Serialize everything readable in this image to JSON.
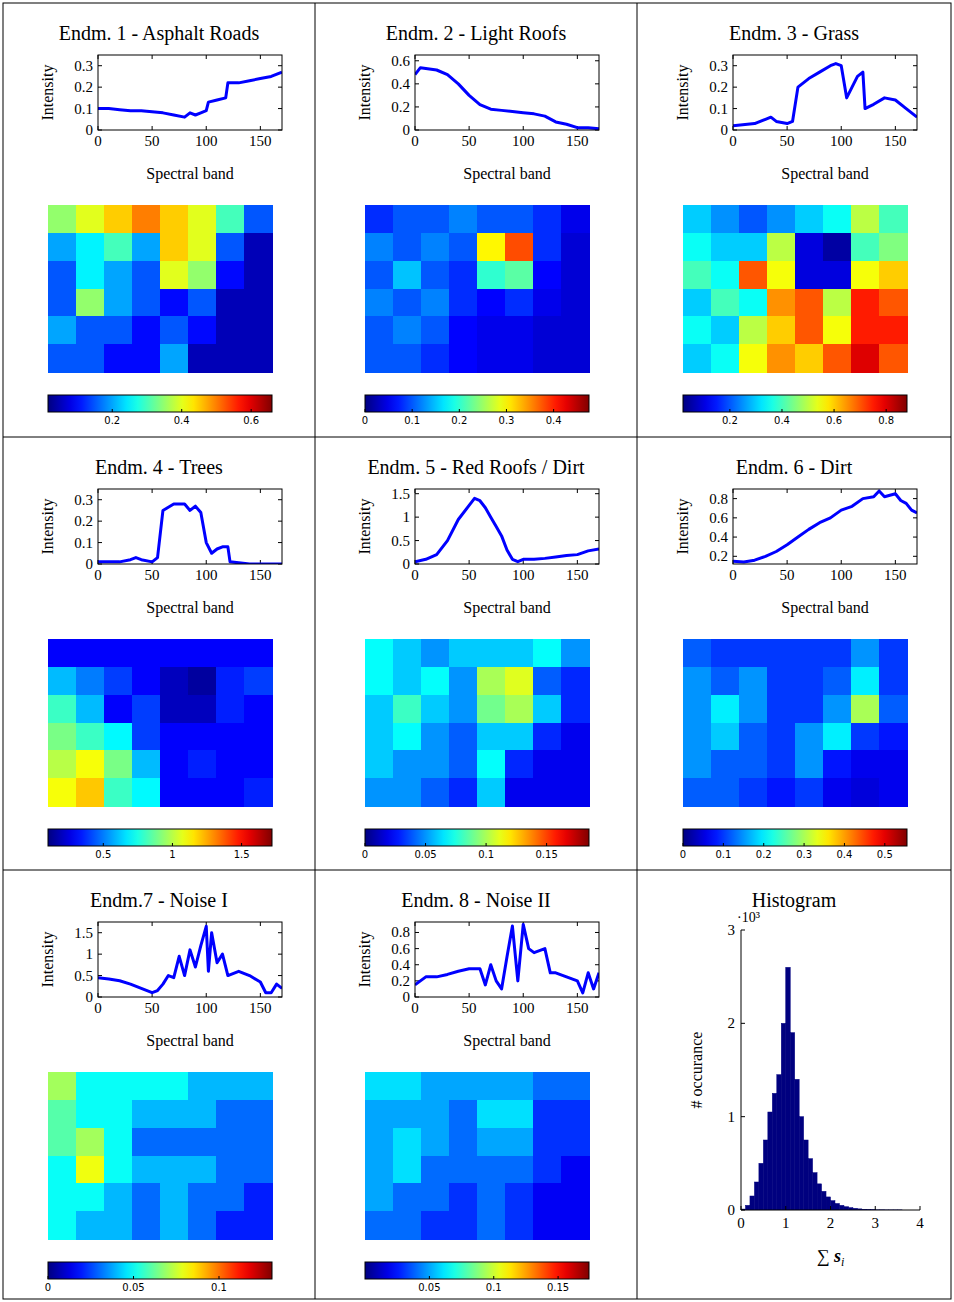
{
  "chart_data": [
    {
      "type": "line",
      "title": "Endm. 1 - Asphalt Roads",
      "color": "#0000ff",
      "x_label": "Spectral band",
      "y_label": "Intensity",
      "x": [
        0,
        10,
        20,
        30,
        40,
        50,
        60,
        70,
        80,
        85,
        90,
        95,
        100,
        102,
        110,
        118,
        120,
        130,
        140,
        150,
        160,
        170
      ],
      "values": [
        0.1,
        0.1,
        0.095,
        0.09,
        0.09,
        0.085,
        0.08,
        0.07,
        0.06,
        0.08,
        0.07,
        0.08,
        0.09,
        0.13,
        0.14,
        0.15,
        0.22,
        0.22,
        0.23,
        0.24,
        0.25,
        0.27
      ],
      "xlim": [
        0,
        170
      ],
      "ylim": [
        0,
        0.35
      ],
      "xticks": [
        0,
        50,
        100,
        150
      ],
      "yticks": [
        0,
        0.1,
        0.2,
        0.3
      ],
      "heatmap": {
        "cells": [
          [
            0.35,
            0.4,
            0.45,
            0.5,
            0.45,
            0.4,
            0.3,
            0.15
          ],
          [
            0.2,
            0.25,
            0.3,
            0.2,
            0.45,
            0.4,
            0.15,
            0.05
          ],
          [
            0.15,
            0.25,
            0.2,
            0.15,
            0.4,
            0.35,
            0.1,
            0.05
          ],
          [
            0.15,
            0.35,
            0.2,
            0.15,
            0.1,
            0.15,
            0.05,
            0.05
          ],
          [
            0.2,
            0.15,
            0.15,
            0.1,
            0.15,
            0.1,
            0.05,
            0.05
          ],
          [
            0.15,
            0.15,
            0.1,
            0.1,
            0.2,
            0.05,
            0.05,
            0.05
          ]
        ],
        "range": [
          0.015,
          0.66
        ],
        "ticks": [
          0.2,
          0.4,
          0.6
        ]
      }
    },
    {
      "type": "line",
      "title": "Endm. 2 - Light Roofs",
      "color": "#0000ff",
      "x_label": "Spectral band",
      "y_label": "Intensity",
      "x": [
        0,
        5,
        20,
        30,
        40,
        50,
        60,
        70,
        80,
        90,
        100,
        110,
        120,
        130,
        140,
        150,
        160,
        170
      ],
      "values": [
        0.48,
        0.54,
        0.52,
        0.48,
        0.4,
        0.3,
        0.22,
        0.18,
        0.17,
        0.16,
        0.15,
        0.14,
        0.12,
        0.07,
        0.05,
        0.02,
        0.02,
        0.01
      ],
      "xlim": [
        0,
        170
      ],
      "ylim": [
        0,
        0.65
      ],
      "xticks": [
        0,
        50,
        100,
        150
      ],
      "yticks": [
        0,
        0.2,
        0.4,
        0.6
      ],
      "heatmap": {
        "cells": [
          [
            0.08,
            0.1,
            0.1,
            0.12,
            0.1,
            0.1,
            0.08,
            0.05
          ],
          [
            0.12,
            0.1,
            0.12,
            0.1,
            0.3,
            0.38,
            0.08,
            0.04
          ],
          [
            0.1,
            0.15,
            0.1,
            0.08,
            0.2,
            0.22,
            0.06,
            0.04
          ],
          [
            0.12,
            0.1,
            0.12,
            0.08,
            0.06,
            0.08,
            0.05,
            0.04
          ],
          [
            0.1,
            0.12,
            0.1,
            0.06,
            0.05,
            0.05,
            0.04,
            0.04
          ],
          [
            0.1,
            0.1,
            0.08,
            0.06,
            0.05,
            0.05,
            0.04,
            0.04
          ]
        ],
        "range": [
          0,
          0.475
        ],
        "ticks": [
          0,
          0.1,
          0.2,
          0.3,
          0.4
        ]
      }
    },
    {
      "type": "line",
      "title": "Endm. 3 - Grass",
      "color": "#0000ff",
      "x_label": "Spectral band",
      "y_label": "Intensity",
      "x": [
        0,
        20,
        30,
        35,
        40,
        50,
        55,
        60,
        70,
        80,
        90,
        95,
        100,
        102,
        105,
        110,
        115,
        120,
        122,
        130,
        140,
        150,
        160,
        170
      ],
      "values": [
        0.02,
        0.03,
        0.05,
        0.06,
        0.04,
        0.03,
        0.04,
        0.2,
        0.24,
        0.27,
        0.3,
        0.31,
        0.3,
        0.24,
        0.15,
        0.2,
        0.25,
        0.27,
        0.1,
        0.12,
        0.15,
        0.14,
        0.1,
        0.06
      ],
      "xlim": [
        0,
        170
      ],
      "ylim": [
        0,
        0.35
      ],
      "xticks": [
        0,
        50,
        100,
        150
      ],
      "yticks": [
        0,
        0.1,
        0.2,
        0.3
      ],
      "heatmap": {
        "cells": [
          [
            0.3,
            0.25,
            0.2,
            0.25,
            0.3,
            0.35,
            0.5,
            0.4
          ],
          [
            0.35,
            0.3,
            0.3,
            0.5,
            0.1,
            0.05,
            0.4,
            0.45
          ],
          [
            0.4,
            0.35,
            0.7,
            0.55,
            0.1,
            0.1,
            0.55,
            0.6
          ],
          [
            0.3,
            0.4,
            0.35,
            0.65,
            0.7,
            0.5,
            0.75,
            0.7
          ],
          [
            0.35,
            0.3,
            0.5,
            0.6,
            0.7,
            0.55,
            0.75,
            0.75
          ],
          [
            0.3,
            0.35,
            0.55,
            0.65,
            0.6,
            0.7,
            0.8,
            0.7
          ]
        ],
        "range": [
          0.02,
          0.88
        ],
        "ticks": [
          0.2,
          0.4,
          0.6,
          0.8
        ]
      }
    },
    {
      "type": "line",
      "title": "Endm. 4 - Trees",
      "color": "#0000ff",
      "x_label": "Spectral band",
      "y_label": "Intensity",
      "x": [
        0,
        20,
        30,
        35,
        40,
        50,
        55,
        60,
        70,
        80,
        85,
        90,
        95,
        100,
        105,
        110,
        115,
        120,
        122,
        140,
        170
      ],
      "values": [
        0.01,
        0.01,
        0.02,
        0.03,
        0.02,
        0.01,
        0.03,
        0.25,
        0.28,
        0.28,
        0.25,
        0.27,
        0.24,
        0.1,
        0.05,
        0.07,
        0.08,
        0.08,
        0.01,
        0,
        0
      ],
      "xlim": [
        0,
        170
      ],
      "ylim": [
        0,
        0.35
      ],
      "xticks": [
        0,
        50,
        100,
        150
      ],
      "yticks": [
        0,
        0.1,
        0.2,
        0.3
      ],
      "heatmap": {
        "cells": [
          [
            0.3,
            0.3,
            0.3,
            0.3,
            0.3,
            0.3,
            0.3,
            0.3
          ],
          [
            0.6,
            0.5,
            0.4,
            0.3,
            0.2,
            0.15,
            0.35,
            0.4
          ],
          [
            0.8,
            0.6,
            0.3,
            0.4,
            0.2,
            0.2,
            0.35,
            0.3
          ],
          [
            0.9,
            0.8,
            0.7,
            0.4,
            0.3,
            0.3,
            0.3,
            0.3
          ],
          [
            1.0,
            1.1,
            0.9,
            0.6,
            0.3,
            0.35,
            0.3,
            0.3
          ],
          [
            1.1,
            1.2,
            0.8,
            0.7,
            0.3,
            0.3,
            0.3,
            0.35
          ]
        ],
        "range": [
          0.1,
          1.72
        ],
        "ticks": [
          0.5,
          1,
          1.5
        ]
      }
    },
    {
      "type": "line",
      "title": "Endm. 5 - Red Roofs / Dirt",
      "color": "#0000ff",
      "x_label": "Spectral band",
      "y_label": "Intensity",
      "x": [
        0,
        10,
        20,
        30,
        40,
        50,
        55,
        60,
        65,
        70,
        75,
        80,
        85,
        90,
        95,
        100,
        110,
        120,
        130,
        140,
        150,
        160,
        170
      ],
      "values": [
        0.05,
        0.1,
        0.2,
        0.5,
        0.95,
        1.25,
        1.4,
        1.35,
        1.2,
        1.0,
        0.8,
        0.6,
        0.3,
        0.1,
        0.05,
        0.1,
        0.1,
        0.12,
        0.15,
        0.18,
        0.2,
        0.28,
        0.32
      ],
      "xlim": [
        0,
        170
      ],
      "ylim": [
        0,
        1.6
      ],
      "xticks": [
        0,
        50,
        100,
        150
      ],
      "yticks": [
        0,
        0.5,
        1,
        1.5
      ],
      "heatmap": {
        "cells": [
          [
            0.07,
            0.06,
            0.05,
            0.06,
            0.06,
            0.06,
            0.07,
            0.05
          ],
          [
            0.07,
            0.06,
            0.07,
            0.05,
            0.1,
            0.11,
            0.04,
            0.03
          ],
          [
            0.06,
            0.08,
            0.06,
            0.05,
            0.09,
            0.1,
            0.06,
            0.03
          ],
          [
            0.06,
            0.07,
            0.05,
            0.04,
            0.06,
            0.06,
            0.03,
            0.02
          ],
          [
            0.06,
            0.05,
            0.05,
            0.04,
            0.07,
            0.03,
            0.02,
            0.02
          ],
          [
            0.05,
            0.05,
            0.04,
            0.03,
            0.06,
            0.02,
            0.02,
            0.02
          ]
        ],
        "range": [
          0,
          0.185
        ],
        "ticks": [
          0,
          0.05,
          0.1,
          0.15
        ]
      }
    },
    {
      "type": "line",
      "title": "Endm. 6 - Dirt",
      "color": "#0000ff",
      "x_label": "Spectral band",
      "y_label": "Intensity",
      "x": [
        0,
        10,
        20,
        30,
        40,
        50,
        60,
        70,
        80,
        90,
        100,
        110,
        120,
        130,
        135,
        140,
        150,
        155,
        160,
        165,
        170
      ],
      "values": [
        0.15,
        0.14,
        0.16,
        0.2,
        0.25,
        0.32,
        0.4,
        0.48,
        0.55,
        0.6,
        0.68,
        0.72,
        0.8,
        0.82,
        0.88,
        0.82,
        0.85,
        0.78,
        0.75,
        0.68,
        0.65
      ],
      "xlim": [
        0,
        170
      ],
      "ylim": [
        0.12,
        0.9
      ],
      "xticks": [
        0,
        50,
        100,
        150
      ],
      "yticks": [
        0.2,
        0.4,
        0.6,
        0.8
      ],
      "heatmap": {
        "cells": [
          [
            0.12,
            0.1,
            0.1,
            0.1,
            0.1,
            0.1,
            0.15,
            0.1
          ],
          [
            0.15,
            0.12,
            0.15,
            0.1,
            0.1,
            0.12,
            0.2,
            0.1
          ],
          [
            0.15,
            0.2,
            0.15,
            0.1,
            0.1,
            0.15,
            0.3,
            0.12
          ],
          [
            0.15,
            0.18,
            0.12,
            0.1,
            0.15,
            0.2,
            0.1,
            0.08
          ],
          [
            0.15,
            0.12,
            0.12,
            0.1,
            0.15,
            0.08,
            0.06,
            0.06
          ],
          [
            0.12,
            0.12,
            0.1,
            0.08,
            0.1,
            0.06,
            0.05,
            0.06
          ]
        ],
        "range": [
          0,
          0.555
        ],
        "ticks": [
          0,
          0.1,
          0.2,
          0.3,
          0.4,
          0.5
        ]
      }
    },
    {
      "type": "line",
      "title": "Endm.7 - Noise I",
      "color": "#0000ff",
      "x_label": "Spectral band",
      "y_label": "Intensity",
      "x": [
        0,
        10,
        20,
        30,
        40,
        50,
        55,
        60,
        65,
        70,
        75,
        80,
        85,
        90,
        95,
        100,
        102,
        105,
        110,
        115,
        120,
        130,
        140,
        150,
        155,
        160,
        165,
        170
      ],
      "values": [
        0.45,
        0.42,
        0.38,
        0.3,
        0.2,
        0.1,
        0.15,
        0.3,
        0.5,
        0.45,
        0.95,
        0.5,
        1.1,
        0.7,
        1.2,
        1.65,
        0.6,
        1.5,
        0.8,
        1.0,
        0.5,
        0.6,
        0.5,
        0.35,
        0.1,
        0.1,
        0.3,
        0.2
      ],
      "xlim": [
        0,
        170
      ],
      "ylim": [
        0,
        1.75
      ],
      "xticks": [
        0,
        50,
        100,
        150
      ],
      "yticks": [
        0,
        0.5,
        1,
        1.5
      ],
      "heatmap": {
        "cells": [
          [
            0.07,
            0.05,
            0.05,
            0.05,
            0.05,
            0.04,
            0.04,
            0.04
          ],
          [
            0.06,
            0.05,
            0.05,
            0.04,
            0.04,
            0.04,
            0.03,
            0.03
          ],
          [
            0.06,
            0.07,
            0.05,
            0.03,
            0.03,
            0.03,
            0.03,
            0.03
          ],
          [
            0.05,
            0.08,
            0.05,
            0.04,
            0.04,
            0.04,
            0.03,
            0.03
          ],
          [
            0.05,
            0.05,
            0.04,
            0.03,
            0.04,
            0.03,
            0.03,
            0.02
          ],
          [
            0.05,
            0.04,
            0.04,
            0.03,
            0.04,
            0.03,
            0.02,
            0.02
          ]
        ],
        "range": [
          0,
          0.131
        ],
        "ticks": [
          0,
          0.05,
          0.1
        ]
      }
    },
    {
      "type": "line",
      "title": "Endm. 8 - Noise II",
      "color": "#0000ff",
      "x_label": "Spectral band",
      "y_label": "Intensity",
      "x": [
        0,
        10,
        20,
        30,
        40,
        50,
        60,
        65,
        70,
        75,
        80,
        85,
        90,
        95,
        100,
        105,
        110,
        120,
        125,
        130,
        140,
        150,
        155,
        160,
        165,
        170
      ],
      "values": [
        0.15,
        0.25,
        0.25,
        0.28,
        0.32,
        0.35,
        0.35,
        0.15,
        0.4,
        0.2,
        0.1,
        0.5,
        0.88,
        0.2,
        0.9,
        0.6,
        0.55,
        0.6,
        0.3,
        0.3,
        0.25,
        0.2,
        0.05,
        0.3,
        0.1,
        0.3
      ],
      "xlim": [
        0,
        170
      ],
      "ylim": [
        0,
        0.93
      ],
      "xticks": [
        0,
        50,
        100,
        150
      ],
      "yticks": [
        0,
        0.2,
        0.4,
        0.6,
        0.8
      ],
      "heatmap": {
        "cells": [
          [
            0.06,
            0.06,
            0.05,
            0.05,
            0.05,
            0.05,
            0.04,
            0.04
          ],
          [
            0.05,
            0.05,
            0.05,
            0.04,
            0.06,
            0.06,
            0.03,
            0.03
          ],
          [
            0.05,
            0.06,
            0.05,
            0.04,
            0.05,
            0.05,
            0.03,
            0.03
          ],
          [
            0.05,
            0.06,
            0.04,
            0.04,
            0.04,
            0.04,
            0.03,
            0.02
          ],
          [
            0.05,
            0.04,
            0.04,
            0.03,
            0.04,
            0.03,
            0.02,
            0.02
          ],
          [
            0.04,
            0.04,
            0.03,
            0.03,
            0.04,
            0.03,
            0.02,
            0.02
          ]
        ],
        "range": [
          0,
          0.174
        ],
        "ticks": [
          0.05,
          0.1,
          0.15
        ]
      }
    },
    {
      "type": "histogram",
      "title": "Histogram",
      "color": "#00007f",
      "x_label": {
        "symbol": "∑",
        "variable": "s",
        "subscript": "i"
      },
      "y_label": "# occurance",
      "y_multiplier": "·10³",
      "bins": [
        0,
        0.1,
        0.2,
        0.3,
        0.4,
        0.5,
        0.6,
        0.7,
        0.8,
        0.9,
        1.0,
        1.1,
        1.2,
        1.3,
        1.4,
        1.5,
        1.6,
        1.7,
        1.8,
        1.9,
        2.0,
        2.1,
        2.2,
        2.3,
        2.4,
        2.5,
        2.6,
        2.7,
        2.8,
        2.9,
        3.0,
        3.1,
        3.2,
        3.3,
        3.4,
        3.5,
        3.6,
        3.7,
        3.8,
        3.9,
        4.0
      ],
      "values": [
        0.01,
        0.05,
        0.15,
        0.3,
        0.5,
        0.75,
        1.05,
        1.25,
        1.45,
        2.0,
        2.6,
        1.9,
        1.4,
        1.0,
        0.75,
        0.55,
        0.4,
        0.28,
        0.2,
        0.14,
        0.1,
        0.07,
        0.05,
        0.035,
        0.025,
        0.018,
        0.012,
        0.008,
        0.005,
        0.003,
        0.002,
        0.002,
        0.001,
        0.001,
        0.001,
        0.001,
        0,
        0,
        0,
        0
      ],
      "xlim": [
        0,
        4
      ],
      "ylim": [
        0,
        3
      ],
      "xticks": [
        0,
        1,
        2,
        3,
        4
      ],
      "yticks": [
        0,
        1,
        2,
        3
      ]
    }
  ]
}
